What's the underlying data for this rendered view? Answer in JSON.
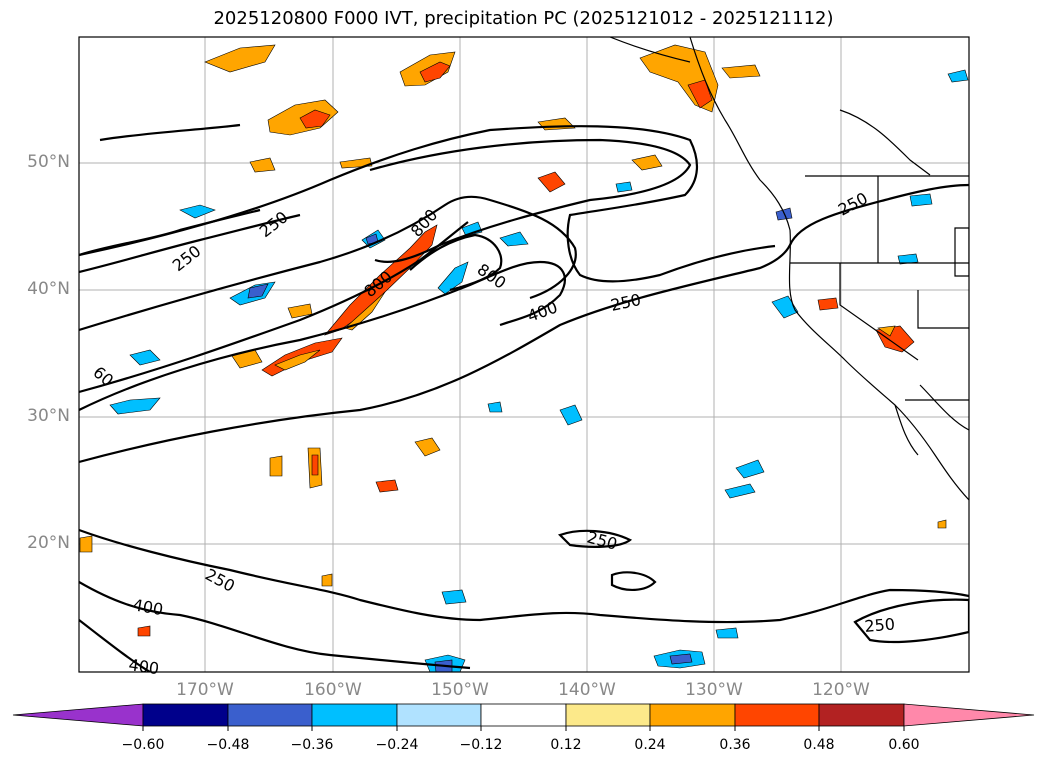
{
  "title": "2025120800 F000 IVT, precipitation PC (2025121012 - 2025121112)",
  "map": {
    "lat_labels": [
      "50°N",
      "40°N",
      "30°N",
      "20°N"
    ],
    "lon_labels": [
      "170°W",
      "160°W",
      "150°W",
      "140°W",
      "130°W",
      "120°W"
    ],
    "contour_labels": [
      "250",
      "250",
      "250",
      "250",
      "250",
      "250",
      "250",
      "400",
      "400",
      "400",
      "800",
      "800",
      "800",
      "60"
    ]
  },
  "colorbar": {
    "ticks": [
      "−0.60",
      "−0.48",
      "−0.36",
      "−0.24",
      "−0.12",
      "0.12",
      "0.24",
      "0.36",
      "0.48",
      "0.60"
    ],
    "colors": [
      "#9932cc",
      "#00008b",
      "#3a5fcd",
      "#00bfff",
      "#b0e2ff",
      "#ffffff",
      "#fce98a",
      "#ffa500",
      "#ff4500",
      "#b22222",
      "#ff88aa"
    ]
  }
}
